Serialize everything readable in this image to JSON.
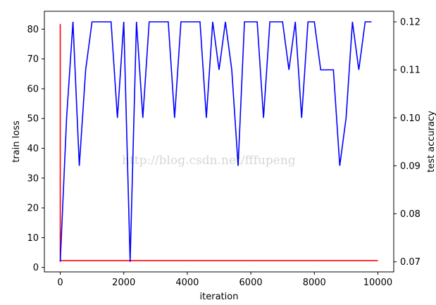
{
  "chart_data": {
    "type": "line",
    "xlabel": "iteration",
    "ylabel_left": "train loss",
    "ylabel_right": "test accuracy",
    "xlim": [
      -500,
      10500
    ],
    "ylim_left": [
      -1.5,
      86
    ],
    "ylim_right": [
      0.0679,
      0.1222
    ],
    "x_ticks": [
      0,
      2000,
      4000,
      6000,
      8000,
      10000
    ],
    "x_tick_labels": [
      "0",
      "2000",
      "4000",
      "6000",
      "8000",
      "10000"
    ],
    "y_left_ticks": [
      0,
      10,
      20,
      30,
      40,
      50,
      60,
      70,
      80
    ],
    "y_left_tick_labels": [
      "0",
      "10",
      "20",
      "30",
      "40",
      "50",
      "60",
      "70",
      "80"
    ],
    "y_right_ticks": [
      0.07,
      0.08,
      0.09,
      0.1,
      0.11,
      0.12
    ],
    "y_right_tick_labels": [
      "0.07",
      "0.08",
      "0.09",
      "0.10",
      "0.11",
      "0.12"
    ],
    "grid": false,
    "watermark": "http://blog.csdn.net/fffupeng",
    "series": [
      {
        "axis": "left",
        "color": "#ff0000",
        "x": [
          0,
          0,
          0,
          0,
          10000
        ],
        "y": [
          2.3,
          81.7,
          16,
          2.3,
          2.3
        ]
      },
      {
        "axis": "right",
        "color": "#0000ff",
        "x": [
          0,
          200,
          400,
          600,
          800,
          1000,
          1200,
          1400,
          1600,
          1800,
          2000,
          2200,
          2400,
          2600,
          2800,
          3000,
          3200,
          3400,
          3600,
          3800,
          4000,
          4200,
          4400,
          4600,
          4800,
          5000,
          5200,
          5400,
          5600,
          5800,
          6000,
          6200,
          6400,
          6600,
          6800,
          7000,
          7200,
          7400,
          7600,
          7800,
          8000,
          8200,
          8400,
          8600,
          8800,
          9000,
          9200,
          9400,
          9600,
          9800
        ],
        "y": [
          0.07,
          0.1,
          0.12,
          0.09,
          0.11,
          0.12,
          0.12,
          0.12,
          0.12,
          0.1,
          0.12,
          0.07,
          0.12,
          0.1,
          0.12,
          0.12,
          0.12,
          0.12,
          0.1,
          0.12,
          0.12,
          0.12,
          0.12,
          0.1,
          0.12,
          0.11,
          0.12,
          0.11,
          0.09,
          0.12,
          0.12,
          0.12,
          0.1,
          0.12,
          0.12,
          0.12,
          0.11,
          0.12,
          0.1,
          0.12,
          0.12,
          0.11,
          0.11,
          0.11,
          0.09,
          0.1,
          0.12,
          0.11,
          0.12,
          0.12
        ]
      }
    ]
  }
}
